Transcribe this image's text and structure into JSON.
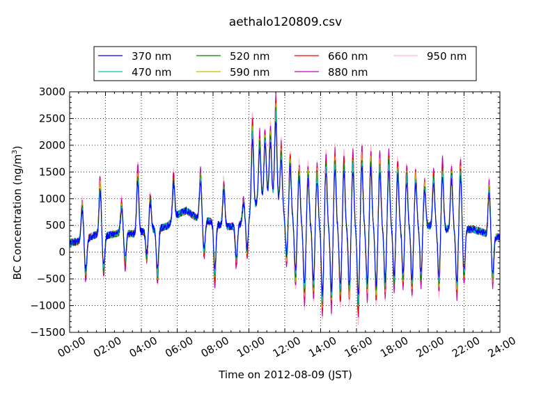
{
  "chart_data": {
    "type": "line",
    "title": "aethalo120809.csv",
    "xlabel": "Time on 2012-08-09 (JST)",
    "ylabel": "BC Concentration (ng/m³)",
    "ylabel_main": "BC Concentration (ng/m",
    "ylabel_sup": "3",
    "ylabel_end": ")",
    "x_range_hours": [
      0,
      24
    ],
    "ylim": [
      -1500,
      3000
    ],
    "grid": true,
    "grid_style": "dotted",
    "legend_position": "top-center",
    "x_tick_labels": [
      "00:00",
      "02:00",
      "04:00",
      "06:00",
      "08:00",
      "10:00",
      "12:00",
      "14:00",
      "16:00",
      "18:00",
      "20:00",
      "22:00",
      "24:00"
    ],
    "y_ticks": [
      -1500,
      -1000,
      -500,
      0,
      500,
      1000,
      1500,
      2000,
      2500,
      3000
    ],
    "series": [
      {
        "name": "370 nm",
        "color": "#0000ff"
      },
      {
        "name": "470 nm",
        "color": "#00bfbf"
      },
      {
        "name": "520 nm",
        "color": "#008000"
      },
      {
        "name": "590 nm",
        "color": "#bfbf00"
      },
      {
        "name": "660 nm",
        "color": "#ff0000"
      },
      {
        "name": "880 nm",
        "color": "#bf00bf"
      },
      {
        "name": "950 nm",
        "color": "#ffb6c1"
      }
    ],
    "baseline_profile": [
      [
        0.0,
        180
      ],
      [
        0.5,
        200
      ],
      [
        1.0,
        260
      ],
      [
        1.5,
        330
      ],
      [
        2.0,
        300
      ],
      [
        2.5,
        340
      ],
      [
        3.0,
        370
      ],
      [
        3.5,
        340
      ],
      [
        4.0,
        380
      ],
      [
        4.5,
        420
      ],
      [
        5.0,
        440
      ],
      [
        5.5,
        500
      ],
      [
        6.0,
        700
      ],
      [
        6.5,
        780
      ],
      [
        7.0,
        660
      ],
      [
        7.5,
        600
      ],
      [
        8.0,
        560
      ],
      [
        8.5,
        480
      ],
      [
        9.0,
        480
      ],
      [
        9.5,
        520
      ],
      [
        10.0,
        700
      ],
      [
        10.5,
        950
      ],
      [
        11.0,
        1100
      ],
      [
        11.5,
        1050
      ],
      [
        12.0,
        700
      ],
      [
        12.5,
        600
      ],
      [
        13.0,
        500
      ],
      [
        14.0,
        450
      ],
      [
        15.0,
        450
      ],
      [
        16.0,
        450
      ],
      [
        17.0,
        450
      ],
      [
        18.0,
        480
      ],
      [
        19.0,
        450
      ],
      [
        20.0,
        500
      ],
      [
        21.0,
        430
      ],
      [
        22.0,
        420
      ],
      [
        22.5,
        430
      ],
      [
        23.0,
        380
      ],
      [
        23.5,
        300
      ],
      [
        24.0,
        280
      ]
    ],
    "spike_maxima": [
      {
        "t": 0.7,
        "v": 1000
      },
      {
        "t": 1.7,
        "v": 1440
      },
      {
        "t": 2.9,
        "v": 1000
      },
      {
        "t": 3.8,
        "v": 1680
      },
      {
        "t": 4.5,
        "v": 1100
      },
      {
        "t": 5.8,
        "v": 1520
      },
      {
        "t": 7.3,
        "v": 1580
      },
      {
        "t": 8.6,
        "v": 1400
      },
      {
        "t": 9.7,
        "v": 1000
      },
      {
        "t": 10.2,
        "v": 2600
      },
      {
        "t": 10.6,
        "v": 2300
      },
      {
        "t": 10.9,
        "v": 2350
      },
      {
        "t": 11.2,
        "v": 2400
      },
      {
        "t": 11.5,
        "v": 3000
      },
      {
        "t": 11.8,
        "v": 2100
      },
      {
        "t": 12.3,
        "v": 1900
      },
      {
        "t": 12.8,
        "v": 1700
      },
      {
        "t": 13.3,
        "v": 1650
      },
      {
        "t": 13.8,
        "v": 1700
      },
      {
        "t": 14.3,
        "v": 1900
      },
      {
        "t": 14.8,
        "v": 1980
      },
      {
        "t": 15.3,
        "v": 1900
      },
      {
        "t": 15.8,
        "v": 1950
      },
      {
        "t": 16.3,
        "v": 2050
      },
      {
        "t": 16.8,
        "v": 1950
      },
      {
        "t": 17.3,
        "v": 1900
      },
      {
        "t": 17.8,
        "v": 1950
      },
      {
        "t": 18.3,
        "v": 1800
      },
      {
        "t": 18.8,
        "v": 1650
      },
      {
        "t": 19.3,
        "v": 1600
      },
      {
        "t": 19.8,
        "v": 1400
      },
      {
        "t": 20.3,
        "v": 1580
      },
      {
        "t": 20.8,
        "v": 1800
      },
      {
        "t": 21.3,
        "v": 1700
      },
      {
        "t": 21.8,
        "v": 1800
      },
      {
        "t": 23.4,
        "v": 1380
      }
    ],
    "dip_minima": [
      {
        "t": 0.9,
        "v": -560
      },
      {
        "t": 1.9,
        "v": -460
      },
      {
        "t": 3.1,
        "v": -320
      },
      {
        "t": 4.3,
        "v": -180
      },
      {
        "t": 4.9,
        "v": -630
      },
      {
        "t": 7.5,
        "v": -150
      },
      {
        "t": 8.1,
        "v": -660
      },
      {
        "t": 9.3,
        "v": -300
      },
      {
        "t": 9.9,
        "v": -120
      },
      {
        "t": 12.1,
        "v": -300
      },
      {
        "t": 12.6,
        "v": -700
      },
      {
        "t": 13.1,
        "v": -1050
      },
      {
        "t": 13.6,
        "v": -900
      },
      {
        "t": 14.1,
        "v": -1230
      },
      {
        "t": 14.6,
        "v": -1150
      },
      {
        "t": 15.1,
        "v": -1050
      },
      {
        "t": 15.6,
        "v": -1000
      },
      {
        "t": 16.1,
        "v": -1300
      },
      {
        "t": 16.6,
        "v": -950
      },
      {
        "t": 17.1,
        "v": -1000
      },
      {
        "t": 17.6,
        "v": -900
      },
      {
        "t": 18.1,
        "v": -800
      },
      {
        "t": 18.6,
        "v": -700
      },
      {
        "t": 19.1,
        "v": -850
      },
      {
        "t": 19.6,
        "v": -700
      },
      {
        "t": 20.6,
        "v": -800
      },
      {
        "t": 21.6,
        "v": -900
      },
      {
        "t": 22.0,
        "v": -600
      },
      {
        "t": 23.6,
        "v": -680
      }
    ]
  }
}
